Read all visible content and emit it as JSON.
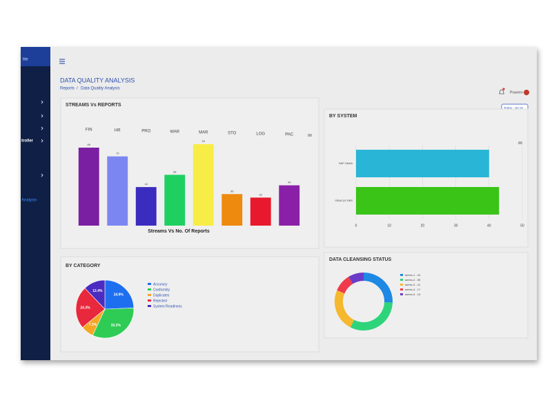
{
  "sidebar": {
    "brand": "lite",
    "items": [
      "troller",
      "Analysis"
    ]
  },
  "header": {
    "title": "DATA QUALITY ANALYSIS",
    "breadcrumb": [
      "Reports",
      "/",
      "Data Quality Analysis"
    ],
    "user": "Praveen",
    "date_button": "Today : Jul 18"
  },
  "chart_data": [
    {
      "type": "bar",
      "title": "STREAMS Vs REPORTS",
      "x_label": "Streams Vs No. Of Reports",
      "categories": [
        "FIN",
        "HR",
        "PRO",
        "WAR",
        "MAR",
        "STO",
        "LOG",
        "PAC"
      ],
      "values": [
        89,
        79,
        44,
        58,
        93,
        36,
        32,
        46
      ],
      "colors": [
        "#7b1fa2",
        "#7b86f0",
        "#3b2cc0",
        "#1fd061",
        "#f8ed46",
        "#ee8a0e",
        "#e8192e",
        "#8a20a8"
      ],
      "ylim": [
        0,
        100
      ]
    },
    {
      "type": "hbar",
      "title": "BY SYSTEM",
      "categories": [
        "SAP HANA",
        "ORACLE EBS"
      ],
      "values": [
        40,
        43
      ],
      "colors": [
        "#29b6d6",
        "#3ac417"
      ],
      "xlim": [
        0,
        50
      ],
      "xticks": [
        0,
        10,
        20,
        30,
        40,
        50
      ],
      "grid": true
    },
    {
      "type": "pie",
      "title": "BY CATEGORY",
      "categories": [
        "Accuracy",
        "Conformity",
        "Duplicates",
        "Rejected",
        "System Readiness"
      ],
      "values": [
        24.9,
        33.3,
        7.3,
        24.3,
        12.4
      ],
      "value_labels": [
        "24.9%",
        "33.3%",
        "7.3%",
        "24.3%",
        "12.4%"
      ],
      "colors": [
        "#1e6ff0",
        "#2ecc55",
        "#f5a623",
        "#e8283c",
        "#4b2cc0"
      ],
      "legend": "right"
    },
    {
      "type": "donut",
      "title": "DATA CLEANSING STATUS",
      "categories": [
        "series-1 - 44",
        "series-2 - 55",
        "series-3 - 41",
        "series-4 - 17",
        "series-5 - 15"
      ],
      "values": [
        44,
        55,
        41,
        17,
        15
      ],
      "colors": [
        "#1e88e5",
        "#2ed47a",
        "#f5b82e",
        "#ef3b4b",
        "#6a3bc8"
      ],
      "legend": "right"
    }
  ]
}
